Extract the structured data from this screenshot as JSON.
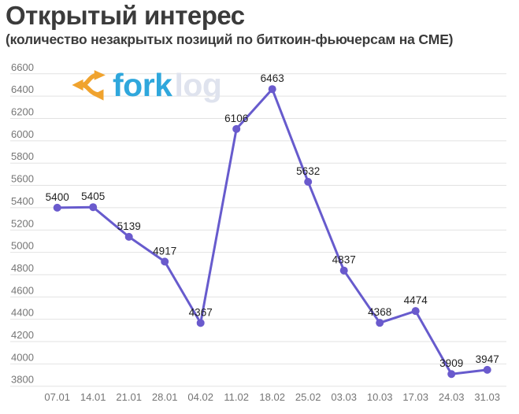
{
  "header": {
    "title": "Открытый интерес",
    "subtitle": "(количество незакрытых позиций по биткоин-фьючерсам на CME)",
    "text_color": "#3b3b3b"
  },
  "logo": {
    "text_primary": "fork",
    "text_secondary": "log",
    "icon": "fork-arrows-icon",
    "icon_color": "#F0A32E",
    "primary_color": "#2FA7DC",
    "secondary_color": "#DFE3EE"
  },
  "chart_data": {
    "type": "line",
    "title": "Открытый интерес",
    "subtitle": "(количество незакрытых позиций по биткоин-фьючерсам на CME)",
    "categories": [
      "07.01",
      "14.01",
      "21.01",
      "28.01",
      "04.02",
      "11.02",
      "18.02",
      "25.02",
      "03.03",
      "10.03",
      "17.03",
      "24.03",
      "31.03"
    ],
    "series": [
      {
        "name": "Открытый интерес",
        "values": [
          5400,
          5405,
          5139,
          4917,
          4367,
          6106,
          6463,
          5632,
          4837,
          4368,
          4474,
          3909,
          3947
        ]
      }
    ],
    "xlabel": "",
    "ylabel": "",
    "ylim": [
      3800,
      6600
    ],
    "ytick_step": 200,
    "grid": "horizontal",
    "legend": "none",
    "data_labels": true,
    "colors": {
      "line": "#675BCD",
      "point": "#6A5ACD",
      "gridline": "#E2E2E2",
      "axis_label": "#757575",
      "data_label": "#1F1F1F"
    }
  }
}
